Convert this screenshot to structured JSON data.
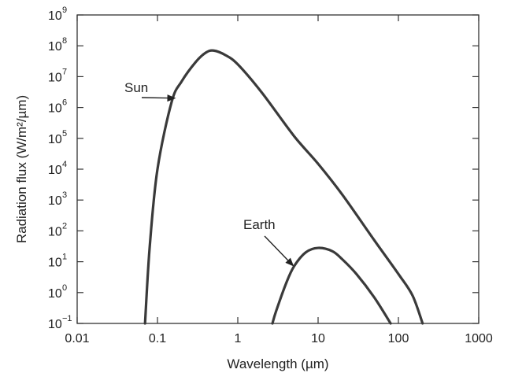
{
  "chart_data": {
    "type": "line",
    "xlabel": "Wavelength (µm)",
    "ylabel": "Radiation flux (W/m²/µm)",
    "xscale": "log",
    "yscale": "log",
    "xlim": [
      0.01,
      1000
    ],
    "ylim": [
      0.1,
      1000000000
    ],
    "grid": false,
    "x_ticks": [
      {
        "value": 0.01,
        "label": "0.01"
      },
      {
        "value": 0.1,
        "label": "0.1"
      },
      {
        "value": 1,
        "label": "1"
      },
      {
        "value": 10,
        "label": "10"
      },
      {
        "value": 100,
        "label": "100"
      },
      {
        "value": 1000,
        "label": "1000"
      }
    ],
    "y_ticks": [
      {
        "value": 0.1,
        "base": "10",
        "exp": "−1"
      },
      {
        "value": 1,
        "base": "10",
        "exp": "0"
      },
      {
        "value": 10,
        "base": "10",
        "exp": "1"
      },
      {
        "value": 100,
        "base": "10",
        "exp": "2"
      },
      {
        "value": 1000,
        "base": "10",
        "exp": "3"
      },
      {
        "value": 10000,
        "base": "10",
        "exp": "4"
      },
      {
        "value": 100000,
        "base": "10",
        "exp": "5"
      },
      {
        "value": 1000000,
        "base": "10",
        "exp": "6"
      },
      {
        "value": 10000000,
        "base": "10",
        "exp": "7"
      },
      {
        "value": 100000000,
        "base": "10",
        "exp": "8"
      },
      {
        "value": 1000000000,
        "base": "10",
        "exp": "9"
      }
    ],
    "series": [
      {
        "name": "Sun",
        "x": [
          0.07,
          0.08,
          0.1,
          0.15,
          0.2,
          0.3,
          0.4,
          0.5,
          0.7,
          1,
          2,
          5,
          10,
          20,
          50,
          100,
          150,
          200
        ],
        "y": [
          0.1,
          30,
          10000,
          1500000,
          7000000,
          30000000,
          60000000,
          70000000,
          50000000,
          25000000,
          3000000,
          120000,
          15000,
          1500,
          50,
          4,
          0.8,
          0.1
        ]
      },
      {
        "name": "Earth",
        "x": [
          2.7,
          3,
          4,
          5,
          7,
          10,
          15,
          20,
          30,
          50,
          80
        ],
        "y": [
          0.1,
          0.25,
          2,
          7,
          20,
          28,
          22,
          12,
          4,
          0.7,
          0.1
        ]
      }
    ],
    "annotations": [
      {
        "text": "Sun",
        "points_to_series": "Sun",
        "target": [
          0.17,
          2000000
        ]
      },
      {
        "text": "Earth",
        "points_to_series": "Earth",
        "target": [
          5,
          7
        ]
      }
    ]
  }
}
